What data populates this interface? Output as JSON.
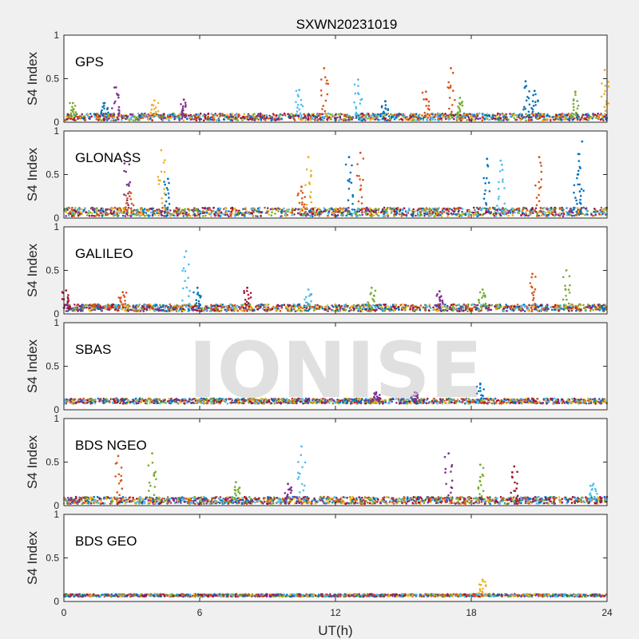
{
  "chart_data": {
    "type": "scatter",
    "title": "SXWN20231019",
    "xlabel": "UT(h)",
    "ylabel": "S4 Index",
    "xlim": [
      0,
      24
    ],
    "ylim": [
      0,
      1
    ],
    "xticks": [
      0,
      6,
      12,
      18,
      24
    ],
    "yticks": [
      0,
      0.5,
      1
    ],
    "xtick_labels": [
      "0",
      "6",
      "12",
      "18",
      "24"
    ],
    "ytick_labels": [
      "0",
      "0.5",
      "1"
    ],
    "watermark": "IONISE",
    "series_colors": [
      "#0072BD",
      "#D95319",
      "#EDB120",
      "#7E2F8E",
      "#77AC30",
      "#4DBEEE",
      "#A2142F"
    ],
    "panels": [
      {
        "label": "GPS",
        "baseline": 0.06,
        "noise": 0.04,
        "spikes": [
          {
            "t": 0.4,
            "v": 0.22,
            "c": 4
          },
          {
            "t": 1.8,
            "v": 0.22,
            "c": 0
          },
          {
            "t": 2.3,
            "v": 0.4,
            "c": 3
          },
          {
            "t": 4.0,
            "v": 0.25,
            "c": 2
          },
          {
            "t": 5.3,
            "v": 0.26,
            "c": 3
          },
          {
            "t": 10.4,
            "v": 0.37,
            "c": 5
          },
          {
            "t": 11.5,
            "v": 0.62,
            "c": 1
          },
          {
            "t": 13.0,
            "v": 0.49,
            "c": 5
          },
          {
            "t": 14.2,
            "v": 0.24,
            "c": 0
          },
          {
            "t": 16.0,
            "v": 0.35,
            "c": 1
          },
          {
            "t": 17.1,
            "v": 0.62,
            "c": 1
          },
          {
            "t": 17.5,
            "v": 0.28,
            "c": 4
          },
          {
            "t": 20.4,
            "v": 0.47,
            "c": 0
          },
          {
            "t": 20.8,
            "v": 0.36,
            "c": 0
          },
          {
            "t": 22.6,
            "v": 0.35,
            "c": 4
          },
          {
            "t": 23.9,
            "v": 0.6,
            "c": 2
          }
        ]
      },
      {
        "label": "GLONASS",
        "baseline": 0.07,
        "noise": 0.05,
        "spikes": [
          {
            "t": 2.8,
            "v": 0.75,
            "c": 3
          },
          {
            "t": 2.9,
            "v": 0.3,
            "c": 1
          },
          {
            "t": 4.3,
            "v": 0.78,
            "c": 2
          },
          {
            "t": 4.6,
            "v": 0.45,
            "c": 0
          },
          {
            "t": 10.8,
            "v": 0.7,
            "c": 2
          },
          {
            "t": 10.5,
            "v": 0.36,
            "c": 1
          },
          {
            "t": 12.6,
            "v": 0.7,
            "c": 0
          },
          {
            "t": 13.1,
            "v": 0.75,
            "c": 1
          },
          {
            "t": 18.7,
            "v": 0.68,
            "c": 0
          },
          {
            "t": 19.3,
            "v": 0.66,
            "c": 5
          },
          {
            "t": 21.0,
            "v": 0.7,
            "c": 1
          },
          {
            "t": 22.9,
            "v": 0.88,
            "c": 0
          },
          {
            "t": 22.7,
            "v": 0.5,
            "c": 0
          }
        ]
      },
      {
        "label": "GALILEO",
        "baseline": 0.07,
        "noise": 0.04,
        "spikes": [
          {
            "t": 0.1,
            "v": 0.27,
            "c": 6
          },
          {
            "t": 2.6,
            "v": 0.25,
            "c": 1
          },
          {
            "t": 5.4,
            "v": 0.72,
            "c": 5
          },
          {
            "t": 5.9,
            "v": 0.3,
            "c": 0
          },
          {
            "t": 8.1,
            "v": 0.3,
            "c": 6
          },
          {
            "t": 10.8,
            "v": 0.28,
            "c": 5
          },
          {
            "t": 13.6,
            "v": 0.3,
            "c": 4
          },
          {
            "t": 16.6,
            "v": 0.26,
            "c": 3
          },
          {
            "t": 18.5,
            "v": 0.28,
            "c": 4
          },
          {
            "t": 20.7,
            "v": 0.46,
            "c": 1
          },
          {
            "t": 22.2,
            "v": 0.5,
            "c": 4
          }
        ]
      },
      {
        "label": "SBAS",
        "baseline": 0.1,
        "noise": 0.03,
        "spikes": [
          {
            "t": 13.8,
            "v": 0.2,
            "c": 3
          },
          {
            "t": 15.5,
            "v": 0.2,
            "c": 3
          },
          {
            "t": 18.4,
            "v": 0.3,
            "c": 0
          }
        ]
      },
      {
        "label": "BDS NGEO",
        "baseline": 0.06,
        "noise": 0.04,
        "spikes": [
          {
            "t": 2.4,
            "v": 0.57,
            "c": 1
          },
          {
            "t": 3.9,
            "v": 0.6,
            "c": 4
          },
          {
            "t": 7.6,
            "v": 0.27,
            "c": 4
          },
          {
            "t": 9.9,
            "v": 0.25,
            "c": 3
          },
          {
            "t": 10.5,
            "v": 0.68,
            "c": 5
          },
          {
            "t": 17.0,
            "v": 0.6,
            "c": 3
          },
          {
            "t": 18.4,
            "v": 0.47,
            "c": 4
          },
          {
            "t": 19.9,
            "v": 0.45,
            "c": 6
          },
          {
            "t": 23.4,
            "v": 0.25,
            "c": 5
          }
        ]
      },
      {
        "label": "BDS GEO",
        "baseline": 0.07,
        "noise": 0.015,
        "spikes": [
          {
            "t": 18.5,
            "v": 0.25,
            "c": 2
          }
        ]
      }
    ]
  }
}
